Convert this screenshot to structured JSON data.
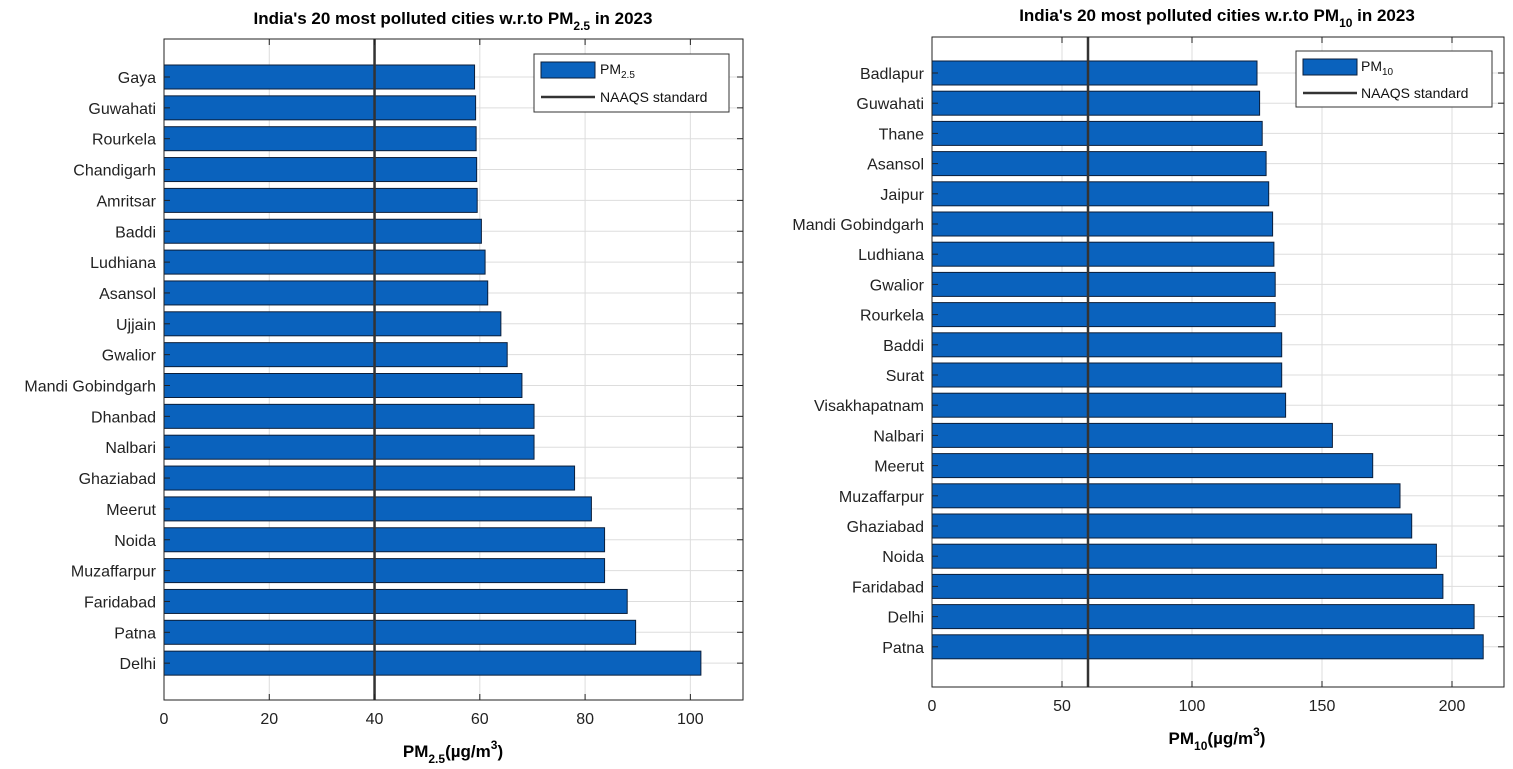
{
  "colors": {
    "bar": "#0a62bd",
    "bar_edge": "#0b1e3a",
    "standard_line": "#333333",
    "grid": "#dddddd"
  },
  "chart_data": [
    {
      "type": "bar",
      "orientation": "horizontal",
      "title": {
        "prefix": "India's 20 most polluted cities w.r.to PM",
        "sub": "2.5",
        "suffix": " in 2023"
      },
      "xlabel": {
        "base": "PM",
        "sub": "2.5",
        "unit": "(µg/m",
        "sup": "3",
        "close": ")"
      },
      "categories": [
        "Gaya",
        "Guwahati",
        "Rourkela",
        "Chandigarh",
        "Amritsar",
        "Baddi",
        "Ludhiana",
        "Asansol",
        "Ujjain",
        "Gwalior",
        "Mandi Gobindgarh",
        "Dhanbad",
        "Nalbari",
        "Ghaziabad",
        "Meerut",
        "Noida",
        "Muzaffarpur",
        "Faridabad",
        "Patna",
        "Delhi"
      ],
      "values": [
        59,
        59.2,
        59.3,
        59.4,
        59.5,
        60.3,
        61,
        61.5,
        64,
        65.2,
        68,
        70.3,
        70.3,
        78,
        81.2,
        83.7,
        83.7,
        88,
        89.6,
        102
      ],
      "xlim": [
        0,
        110
      ],
      "xticks": [
        "0",
        "20",
        "40",
        "60",
        "80",
        "100"
      ],
      "xtick_values": [
        0,
        20,
        40,
        60,
        80,
        100
      ],
      "standard": 40,
      "grid": true,
      "legend": {
        "placement": "top-right",
        "series": {
          "base": "PM",
          "sub": "2.5"
        },
        "line": "NAAQS standard"
      }
    },
    {
      "type": "bar",
      "orientation": "horizontal",
      "title": {
        "prefix": "India's 20 most polluted cities w.r.to PM",
        "sub": "10",
        "suffix": " in 2023"
      },
      "xlabel": {
        "base": "PM",
        "sub": "10",
        "unit": "(µg/m",
        "sup": "3",
        "close": ")"
      },
      "categories": [
        "Badlapur",
        "Guwahati",
        "Thane",
        "Asansol",
        "Jaipur",
        "Mandi Gobindgarh",
        "Ludhiana",
        "Gwalior",
        "Rourkela",
        "Baddi",
        "Surat",
        "Visakhapatnam",
        "Nalbari",
        "Meerut",
        "Muzaffarpur",
        "Ghaziabad",
        "Noida",
        "Faridabad",
        "Delhi",
        "Patna"
      ],
      "values": [
        125,
        126,
        127,
        128.5,
        129.5,
        131,
        131.5,
        132,
        132,
        134.5,
        134.5,
        136,
        154,
        169.5,
        180,
        184.5,
        194,
        196.5,
        208.5,
        212
      ],
      "xlim": [
        0,
        220
      ],
      "xticks": [
        "0",
        "50",
        "100",
        "150",
        "200"
      ],
      "xtick_values": [
        0,
        50,
        100,
        150,
        200
      ],
      "standard": 60,
      "grid": true,
      "legend": {
        "placement": "top-right",
        "series": {
          "base": "PM",
          "sub": "10"
        },
        "line": "NAAQS standard"
      }
    }
  ]
}
